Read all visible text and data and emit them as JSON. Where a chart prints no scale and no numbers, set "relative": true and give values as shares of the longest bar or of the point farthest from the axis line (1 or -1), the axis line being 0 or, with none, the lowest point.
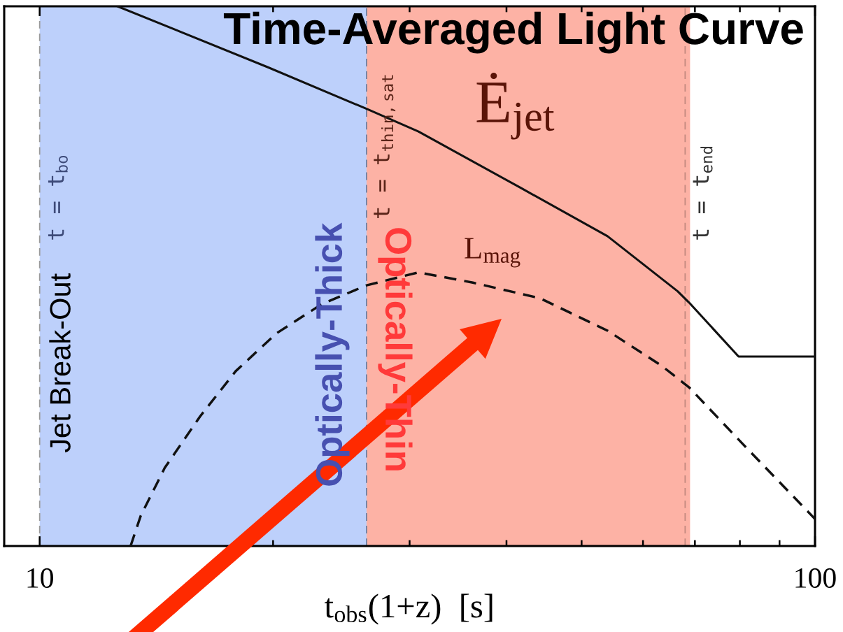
{
  "chart_data": {
    "type": "line",
    "title": "Time-Averaged Light Curve",
    "xlabel": "t$_{obs}$(1+z)  [s]",
    "log": "x",
    "xlim": [
      9,
      100
    ],
    "xticks": [
      10,
      {
        "value": 20,
        "label": null
      },
      {
        "value": 30,
        "label": null
      },
      {
        "value": 40,
        "label": null
      },
      {
        "value": 50,
        "label": null
      },
      {
        "value": 60,
        "label": null
      },
      {
        "value": 70,
        "label": null
      },
      {
        "value": 80,
        "label": null
      },
      {
        "value": 90,
        "label": null
      },
      100
    ],
    "relative": true,
    "tick_labels": "x",
    "grid": false,
    "legend": false,
    "marker": "none",
    "series": [
      {
        "name": "Ė$_{jet}$",
        "color": "#111111",
        "line_style": "solid",
        "x": [
          12.6,
          19.7,
          26.4,
          30.8,
          41.8,
          54.0,
          66.5,
          68.8,
          79.7,
          100
        ],
        "values": [
          1.0,
          0.887,
          0.81,
          0.768,
          0.663,
          0.574,
          0.472,
          0.451,
          0.351,
          0.351
        ]
      },
      {
        "name": "L$_{mag}$",
        "color": "#111111",
        "line_style": "dashed",
        "x": [
          13.1,
          13.5,
          14.5,
          16.1,
          17.9,
          20.2,
          23.1,
          26.4,
          30.8,
          36.2,
          44.2,
          54.0,
          63.4,
          68.8,
          80.7,
          100
        ],
        "values": [
          0.0,
          0.056,
          0.145,
          0.24,
          0.324,
          0.394,
          0.448,
          0.483,
          0.507,
          0.488,
          0.459,
          0.399,
          0.334,
          0.294,
          0.189,
          0.05
        ]
      }
    ],
    "ref_lines": [
      {
        "axis": "x",
        "value": 10,
        "label": "t = t$_{bo}$",
        "color": "#9a9a9a",
        "line_style": "dashed"
      },
      {
        "axis": "x",
        "value": 26.4,
        "label": "t = t$_{thin,sat}$",
        "color": "#6f7f9f",
        "line_style": "dashed"
      },
      {
        "axis": "x",
        "value": 68,
        "label": "t = t$_{end}$",
        "color": "#c48a80",
        "line_style": "dashed"
      }
    ],
    "bands": [
      {
        "axis": "x",
        "from": 10,
        "to": 26.4,
        "label": "Optically-Thick",
        "color": "#bdd0fb"
      },
      {
        "axis": "x",
        "from": 26.4,
        "to": 69,
        "label": "Optically-Thin",
        "color": "#fdb2a5"
      }
    ],
    "annotations": [
      {
        "text": "Jet Break-Out",
        "x": 10,
        "y": 0.339
      }
    ]
  }
}
